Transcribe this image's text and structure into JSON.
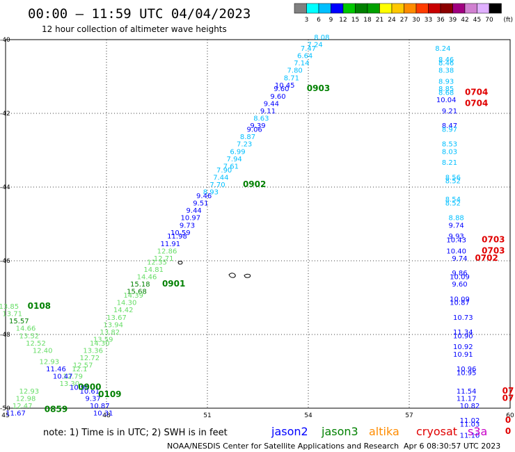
{
  "header": {
    "title": "00:00 – 11:59 UTC 04/04/2023",
    "subtitle": "12 hour collection of altimeter wave heights"
  },
  "legend": {
    "colors": [
      "#808080",
      "#00ffff",
      "#00bfff",
      "#0000ff",
      "#00c800",
      "#008000",
      "#00a000",
      "#ffff00",
      "#ffc800",
      "#ff8c00",
      "#ff3c00",
      "#c80000",
      "#8b0000",
      "#a00080",
      "#d080d0",
      "#e0b0ff",
      "#000000"
    ],
    "labels": [
      "3",
      "6",
      "9",
      "12",
      "15",
      "18",
      "21",
      "24",
      "27",
      "30",
      "33",
      "36",
      "39",
      "42",
      "45",
      "70"
    ],
    "unit": "(ft)"
  },
  "axes": {
    "x_ticks": [
      "45",
      "48",
      "51",
      "54",
      "57",
      "60"
    ],
    "y_ticks": [
      "-40",
      "-42",
      "-44",
      "-46",
      "-48",
      "-50"
    ]
  },
  "footer": {
    "note": "note:  1) Time is in UTC;  2) SWH is in feet",
    "credit": "NOAA/NESDIS Center for Satellite Applications and Research",
    "timestamp": "Apr  6 08:30:57 UTC 2023",
    "satellites": [
      {
        "name": "jason2",
        "color": "#0000ff"
      },
      {
        "name": "jason3",
        "color": "#008000"
      },
      {
        "name": "altika",
        "color": "#ff8c00"
      },
      {
        "name": "cryosat",
        "color": "#e00000"
      },
      {
        "name": "s3a",
        "color": "#c800c8"
      }
    ]
  },
  "chart_data": {
    "type": "scatter",
    "xlim": [
      45,
      60
    ],
    "ylim": [
      -50,
      -40
    ],
    "grid": true,
    "points": [
      {
        "lon": 54.4,
        "lat": -40.0,
        "label": "8.08",
        "color": "#00bfff"
      },
      {
        "lon": 54.2,
        "lat": -40.2,
        "label": "7.24",
        "color": "#00bfff"
      },
      {
        "lon": 54.0,
        "lat": -40.3,
        "label": "7.47",
        "color": "#00bfff"
      },
      {
        "lon": 53.9,
        "lat": -40.5,
        "label": "6.64",
        "color": "#00bfff"
      },
      {
        "lon": 53.8,
        "lat": -40.7,
        "label": "7.14",
        "color": "#00bfff"
      },
      {
        "lon": 53.6,
        "lat": -40.9,
        "label": "7.80",
        "color": "#00bfff"
      },
      {
        "lon": 53.5,
        "lat": -41.1,
        "label": "8.71",
        "color": "#00bfff"
      },
      {
        "lon": 53.3,
        "lat": -41.3,
        "label": "10.45",
        "color": "#0000ff"
      },
      {
        "lon": 53.2,
        "lat": -41.4,
        "label": "9.60",
        "color": "#0000ff"
      },
      {
        "lon": 53.1,
        "lat": -41.6,
        "label": "9.60",
        "color": "#0000ff"
      },
      {
        "lon": 52.9,
        "lat": -41.8,
        "label": "9.44",
        "color": "#0000ff"
      },
      {
        "lon": 52.8,
        "lat": -42.0,
        "label": "9.11",
        "color": "#0000ff"
      },
      {
        "lon": 52.6,
        "lat": -42.2,
        "label": "8.63",
        "color": "#00bfff"
      },
      {
        "lon": 52.5,
        "lat": -42.4,
        "label": "9.39",
        "color": "#0000ff"
      },
      {
        "lon": 52.4,
        "lat": -42.5,
        "label": "9.06",
        "color": "#0000ff"
      },
      {
        "lon": 52.2,
        "lat": -42.7,
        "label": "8.87",
        "color": "#00bfff"
      },
      {
        "lon": 52.1,
        "lat": -42.9,
        "label": "7.23",
        "color": "#00bfff"
      },
      {
        "lon": 51.9,
        "lat": -43.1,
        "label": "6.99",
        "color": "#00bfff"
      },
      {
        "lon": 51.8,
        "lat": -43.3,
        "label": "7.94",
        "color": "#00bfff"
      },
      {
        "lon": 51.7,
        "lat": -43.5,
        "label": "7.61",
        "color": "#00bfff"
      },
      {
        "lon": 51.5,
        "lat": -43.6,
        "label": "7.90",
        "color": "#00bfff"
      },
      {
        "lon": 51.4,
        "lat": -43.8,
        "label": "7.44",
        "color": "#00bfff"
      },
      {
        "lon": 51.3,
        "lat": -44.0,
        "label": "7.70",
        "color": "#00bfff"
      },
      {
        "lon": 51.1,
        "lat": -44.2,
        "label": "8.93",
        "color": "#00bfff"
      },
      {
        "lon": 50.9,
        "lat": -44.3,
        "label": "9.46",
        "color": "#0000ff"
      },
      {
        "lon": 50.8,
        "lat": -44.5,
        "label": "9.51",
        "color": "#0000ff"
      },
      {
        "lon": 50.6,
        "lat": -44.7,
        "label": "9.44",
        "color": "#0000ff"
      },
      {
        "lon": 50.5,
        "lat": -44.9,
        "label": "10.97",
        "color": "#0000ff"
      },
      {
        "lon": 50.4,
        "lat": -45.1,
        "label": "9.73",
        "color": "#0000ff"
      },
      {
        "lon": 50.2,
        "lat": -45.3,
        "label": "10.59",
        "color": "#0000ff"
      },
      {
        "lon": 50.1,
        "lat": -45.4,
        "label": "11.98",
        "color": "#0000ff"
      },
      {
        "lon": 49.9,
        "lat": -45.6,
        "label": "11.91",
        "color": "#0000ff"
      },
      {
        "lon": 49.8,
        "lat": -45.8,
        "label": "12.86",
        "color": "#66dd66"
      },
      {
        "lon": 49.7,
        "lat": -46.0,
        "label": "12.71",
        "color": "#66dd66"
      },
      {
        "lon": 49.5,
        "lat": -46.1,
        "label": "12.35",
        "color": "#66dd66"
      },
      {
        "lon": 49.4,
        "lat": -46.3,
        "label": "14.81",
        "color": "#66dd66"
      },
      {
        "lon": 49.2,
        "lat": -46.5,
        "label": "14.46",
        "color": "#66dd66"
      },
      {
        "lon": 49.0,
        "lat": -46.7,
        "label": "15.18",
        "color": "#008000"
      },
      {
        "lon": 48.9,
        "lat": -46.9,
        "label": "15.68",
        "color": "#008000"
      },
      {
        "lon": 48.8,
        "lat": -47.0,
        "label": "14.39",
        "color": "#66dd66"
      },
      {
        "lon": 48.6,
        "lat": -47.2,
        "label": "14.30",
        "color": "#66dd66"
      },
      {
        "lon": 48.5,
        "lat": -47.4,
        "label": "14.42",
        "color": "#66dd66"
      },
      {
        "lon": 48.3,
        "lat": -47.6,
        "label": "13.67",
        "color": "#66dd66"
      },
      {
        "lon": 48.2,
        "lat": -47.8,
        "label": "13.94",
        "color": "#66dd66"
      },
      {
        "lon": 48.1,
        "lat": -48.0,
        "label": "13.82",
        "color": "#66dd66"
      },
      {
        "lon": 47.9,
        "lat": -48.2,
        "label": "13.59",
        "color": "#66dd66"
      },
      {
        "lon": 47.8,
        "lat": -48.3,
        "label": "14.30",
        "color": "#66dd66"
      },
      {
        "lon": 47.6,
        "lat": -48.5,
        "label": "13.36",
        "color": "#66dd66"
      },
      {
        "lon": 47.5,
        "lat": -48.7,
        "label": "12.72",
        "color": "#66dd66"
      },
      {
        "lon": 47.3,
        "lat": -48.9,
        "label": "12.57",
        "color": "#66dd66"
      },
      {
        "lon": 47.2,
        "lat": -49.0,
        "label": "12.1",
        "color": "#66dd66"
      },
      {
        "lon": 47.0,
        "lat": -49.2,
        "label": "12.79",
        "color": "#66dd66"
      },
      {
        "lon": 46.9,
        "lat": -49.4,
        "label": "13.30",
        "color": "#66dd66"
      },
      {
        "lon": 45.1,
        "lat": -47.3,
        "label": "13.85",
        "color": "#66dd66"
      },
      {
        "lon": 45.2,
        "lat": -47.5,
        "label": "13.71",
        "color": "#66dd66"
      },
      {
        "lon": 45.4,
        "lat": -47.7,
        "label": "15.57",
        "color": "#008000"
      },
      {
        "lon": 45.6,
        "lat": -47.9,
        "label": "14.66",
        "color": "#66dd66"
      },
      {
        "lon": 45.7,
        "lat": -48.1,
        "label": "13.52",
        "color": "#66dd66"
      },
      {
        "lon": 45.9,
        "lat": -48.3,
        "label": "12.52",
        "color": "#66dd66"
      },
      {
        "lon": 46.1,
        "lat": -48.5,
        "label": "12.40",
        "color": "#66dd66"
      },
      {
        "lon": 46.3,
        "lat": -48.8,
        "label": "12.93",
        "color": "#66dd66"
      },
      {
        "lon": 46.5,
        "lat": -49.0,
        "label": "11.46",
        "color": "#0000ff"
      },
      {
        "lon": 46.7,
        "lat": -49.2,
        "label": "10.47",
        "color": "#0000ff"
      },
      {
        "lon": 47.2,
        "lat": -49.5,
        "label": "10.90",
        "color": "#0000ff"
      },
      {
        "lon": 47.5,
        "lat": -49.6,
        "label": "10.61",
        "color": "#0000ff"
      },
      {
        "lon": 47.6,
        "lat": -49.8,
        "label": "9.37",
        "color": "#0000ff"
      },
      {
        "lon": 47.8,
        "lat": -50.0,
        "label": "10.87",
        "color": "#0000ff"
      },
      {
        "lon": 47.9,
        "lat": -50.2,
        "label": "10.31",
        "color": "#0000ff"
      },
      {
        "lon": 45.7,
        "lat": -49.6,
        "label": "12.93",
        "color": "#66dd66"
      },
      {
        "lon": 45.6,
        "lat": -49.8,
        "label": "12.98",
        "color": "#66dd66"
      },
      {
        "lon": 45.5,
        "lat": -50.0,
        "label": "12.47",
        "color": "#66dd66"
      },
      {
        "lon": 45.3,
        "lat": -50.2,
        "label": "11.67",
        "color": "#0000ff"
      },
      {
        "lon": 58.0,
        "lat": -40.3,
        "label": "8.24",
        "color": "#00bfff"
      },
      {
        "lon": 58.1,
        "lat": -40.6,
        "label": "8.46",
        "color": "#00bfff"
      },
      {
        "lon": 58.1,
        "lat": -40.7,
        "label": "8.46",
        "color": "#00bfff"
      },
      {
        "lon": 58.1,
        "lat": -40.9,
        "label": "8.38",
        "color": "#00bfff"
      },
      {
        "lon": 58.1,
        "lat": -41.2,
        "label": "8.93",
        "color": "#00bfff"
      },
      {
        "lon": 58.1,
        "lat": -41.4,
        "label": "8.85",
        "color": "#00bfff"
      },
      {
        "lon": 58.1,
        "lat": -41.5,
        "label": "8.68",
        "color": "#00bfff"
      },
      {
        "lon": 58.1,
        "lat": -41.7,
        "label": "10.04",
        "color": "#0000ff"
      },
      {
        "lon": 58.2,
        "lat": -42.0,
        "label": "9.21",
        "color": "#0000ff"
      },
      {
        "lon": 58.2,
        "lat": -42.4,
        "label": "8.47",
        "color": "#0000ff"
      },
      {
        "lon": 58.2,
        "lat": -42.5,
        "label": "8.97",
        "color": "#00bfff"
      },
      {
        "lon": 58.2,
        "lat": -42.9,
        "label": "8.53",
        "color": "#00bfff"
      },
      {
        "lon": 58.2,
        "lat": -43.1,
        "label": "8.03",
        "color": "#00bfff"
      },
      {
        "lon": 58.2,
        "lat": -43.4,
        "label": "8.21",
        "color": "#00bfff"
      },
      {
        "lon": 58.3,
        "lat": -43.8,
        "label": "8.56",
        "color": "#00bfff"
      },
      {
        "lon": 58.3,
        "lat": -43.9,
        "label": "8.52",
        "color": "#00bfff"
      },
      {
        "lon": 58.3,
        "lat": -44.4,
        "label": "8.54",
        "color": "#00bfff"
      },
      {
        "lon": 58.3,
        "lat": -44.5,
        "label": "8.52",
        "color": "#00bfff"
      },
      {
        "lon": 58.4,
        "lat": -44.9,
        "label": "8.88",
        "color": "#00bfff"
      },
      {
        "lon": 58.4,
        "lat": -45.1,
        "label": "9.74",
        "color": "#0000ff"
      },
      {
        "lon": 58.4,
        "lat": -45.4,
        "label": "9.93",
        "color": "#0000ff"
      },
      {
        "lon": 58.4,
        "lat": -45.5,
        "label": "10.43",
        "color": "#0000ff"
      },
      {
        "lon": 58.4,
        "lat": -45.8,
        "label": "10.40",
        "color": "#0000ff"
      },
      {
        "lon": 58.5,
        "lat": -46.0,
        "label": "9.74",
        "color": "#0000ff"
      },
      {
        "lon": 58.5,
        "lat": -46.4,
        "label": "9.86",
        "color": "#0000ff"
      },
      {
        "lon": 58.5,
        "lat": -46.5,
        "label": "10.09",
        "color": "#0000ff"
      },
      {
        "lon": 58.5,
        "lat": -46.7,
        "label": "9.60",
        "color": "#0000ff"
      },
      {
        "lon": 58.5,
        "lat": -47.1,
        "label": "10.09",
        "color": "#0000ff"
      },
      {
        "lon": 58.5,
        "lat": -47.2,
        "label": "10.87",
        "color": "#0000ff"
      },
      {
        "lon": 58.6,
        "lat": -47.6,
        "label": "10.73",
        "color": "#0000ff"
      },
      {
        "lon": 58.6,
        "lat": -48.0,
        "label": "11.34",
        "color": "#0000ff"
      },
      {
        "lon": 58.6,
        "lat": -48.1,
        "label": "10.90",
        "color": "#0000ff"
      },
      {
        "lon": 58.6,
        "lat": -48.4,
        "label": "10.92",
        "color": "#0000ff"
      },
      {
        "lon": 58.6,
        "lat": -48.6,
        "label": "10.91",
        "color": "#0000ff"
      },
      {
        "lon": 58.7,
        "lat": -49.0,
        "label": "10.96",
        "color": "#0000ff"
      },
      {
        "lon": 58.7,
        "lat": -49.1,
        "label": "10.95",
        "color": "#0000ff"
      },
      {
        "lon": 58.7,
        "lat": -49.6,
        "label": "11.54",
        "color": "#0000ff"
      },
      {
        "lon": 58.7,
        "lat": -49.8,
        "label": "11.17",
        "color": "#0000ff"
      },
      {
        "lon": 58.8,
        "lat": -50.0,
        "label": "10.82",
        "color": "#0000ff"
      },
      {
        "lon": 58.8,
        "lat": -50.4,
        "label": "11.02",
        "color": "#0000ff"
      },
      {
        "lon": 58.8,
        "lat": -50.5,
        "label": "11.03",
        "color": "#0000ff"
      },
      {
        "lon": 58.8,
        "lat": -50.8,
        "label": "11.10",
        "color": "#0000ff"
      }
    ],
    "time_labels": [
      {
        "lon": 54.3,
        "lat": -41.4,
        "label": "0903",
        "color": "#008000"
      },
      {
        "lon": 52.4,
        "lat": -44.0,
        "label": "0902",
        "color": "#008000"
      },
      {
        "lon": 50.0,
        "lat": -46.7,
        "label": "0901",
        "color": "#008000"
      },
      {
        "lon": 46.0,
        "lat": -47.3,
        "label": "0108",
        "color": "#008000"
      },
      {
        "lon": 47.5,
        "lat": -49.5,
        "label": "0900",
        "color": "#008000"
      },
      {
        "lon": 48.1,
        "lat": -49.7,
        "label": "0109",
        "color": "#008000"
      },
      {
        "lon": 46.5,
        "lat": -50.1,
        "label": "0859",
        "color": "#008000"
      },
      {
        "lon": 59.0,
        "lat": -41.5,
        "label": "0704",
        "color": "#e00000"
      },
      {
        "lon": 59.0,
        "lat": -41.8,
        "label": "0704",
        "color": "#e00000"
      },
      {
        "lon": 59.5,
        "lat": -45.5,
        "label": "0703",
        "color": "#e00000"
      },
      {
        "lon": 59.5,
        "lat": -45.8,
        "label": "0703",
        "color": "#e00000"
      },
      {
        "lon": 59.3,
        "lat": -46.0,
        "label": "0702",
        "color": "#e00000"
      },
      {
        "lon": 60.0,
        "lat": -49.6,
        "label": "07",
        "color": "#e00000"
      },
      {
        "lon": 60.0,
        "lat": -49.8,
        "label": "07",
        "color": "#e00000"
      },
      {
        "lon": 60.0,
        "lat": -50.4,
        "label": "0",
        "color": "#e00000"
      },
      {
        "lon": 60.0,
        "lat": -50.7,
        "label": "0",
        "color": "#e00000"
      }
    ]
  }
}
